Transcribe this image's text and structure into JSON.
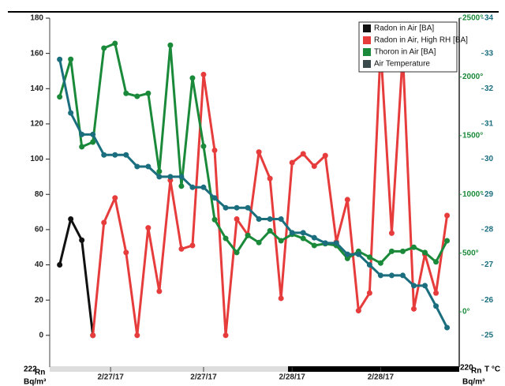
{
  "chart_data": {
    "type": "line",
    "x": [
      0,
      1,
      2,
      3,
      4,
      5,
      6,
      7,
      8,
      9,
      10,
      11,
      12,
      13,
      14,
      15,
      16,
      17,
      18,
      19,
      20,
      21,
      22,
      23,
      24,
      25,
      26,
      27,
      28,
      29,
      30,
      31,
      32,
      33,
      34,
      35
    ],
    "xlim": [
      -0.9,
      36.1
    ],
    "xticks": [
      {
        "value": 4.6,
        "label": "2/27/17"
      },
      {
        "value": 13,
        "label": "2/27/17"
      },
      {
        "value": 21,
        "label": "2/28/17"
      },
      {
        "value": 29,
        "label": "2/28/17"
      }
    ],
    "ylim": [
      -18,
      180
    ],
    "yticks": [
      0,
      20,
      40,
      60,
      80,
      100,
      120,
      140,
      160,
      180
    ],
    "y2lim": [
      -470,
      2500
    ],
    "y2ticks": [
      {
        "value": 0,
        "label": "0°"
      },
      {
        "value": 500,
        "label": "500°"
      },
      {
        "value": 1000,
        "label": "1000°"
      },
      {
        "value": 1500,
        "label": "1500°"
      },
      {
        "value": 2000,
        "label": "2000°"
      },
      {
        "value": 2500,
        "label": "2500°"
      }
    ],
    "y3lim": [
      24.1,
      34
    ],
    "y3ticks": [
      25,
      26,
      27,
      28,
      29,
      30,
      31,
      32,
      33,
      34
    ],
    "y_label": {
      "sup": "222",
      "main": "Rn",
      "unit": "Bq/m³"
    },
    "y2_label": {
      "sup": "220",
      "main": "Rn",
      "unit": "Bq/m³"
    },
    "y3_label": "T °C",
    "series": [
      {
        "name": "Radon in Air [BA]",
        "color": "#111111",
        "axis": "y",
        "values": [
          40,
          66,
          54,
          0,
          null,
          null,
          null,
          null,
          null,
          null,
          null,
          null,
          null,
          null,
          null,
          null,
          null,
          null,
          null,
          null,
          null,
          null,
          null,
          null,
          null,
          null,
          null,
          null,
          null,
          null,
          null,
          null,
          null,
          null,
          null,
          null
        ]
      },
      {
        "name": "Radon in Air, High RH [BA]",
        "color": "#e63c3c",
        "axis": "y",
        "values": [
          null,
          null,
          null,
          0,
          64,
          78,
          47,
          0,
          61,
          25,
          88,
          49,
          51,
          148,
          105,
          0,
          66,
          57,
          104,
          89,
          21,
          98,
          103,
          96,
          102,
          53,
          77,
          14,
          24,
          163,
          58,
          160,
          15,
          46,
          24,
          68
        ]
      },
      {
        "name": "Thoron in Air [BA]",
        "color": "#1a8a3a",
        "axis": "y2",
        "values": [
          1830,
          2150,
          1405,
          1445,
          2245,
          2285,
          1860,
          1835,
          1860,
          1195,
          2270,
          1070,
          1990,
          1410,
          785,
          625,
          505,
          650,
          590,
          690,
          605,
          660,
          625,
          565,
          580,
          565,
          455,
          515,
          465,
          415,
          515,
          515,
          550,
          505,
          425,
          605
        ]
      },
      {
        "name": "Air Temperature",
        "color": "#1a6e7e",
        "legend_color": "#3a4a4a",
        "axis": "y3",
        "values": [
          32.83,
          31.31,
          30.7,
          30.7,
          30.12,
          30.12,
          30.12,
          29.79,
          29.79,
          29.5,
          29.5,
          29.5,
          29.2,
          29.2,
          28.9,
          28.62,
          28.62,
          28.62,
          28.3,
          28.3,
          28.3,
          27.91,
          27.91,
          27.77,
          27.62,
          27.62,
          27.3,
          27.3,
          27.0,
          26.7,
          26.7,
          26.7,
          26.41,
          26.41,
          25.83,
          25.22
        ]
      }
    ]
  }
}
